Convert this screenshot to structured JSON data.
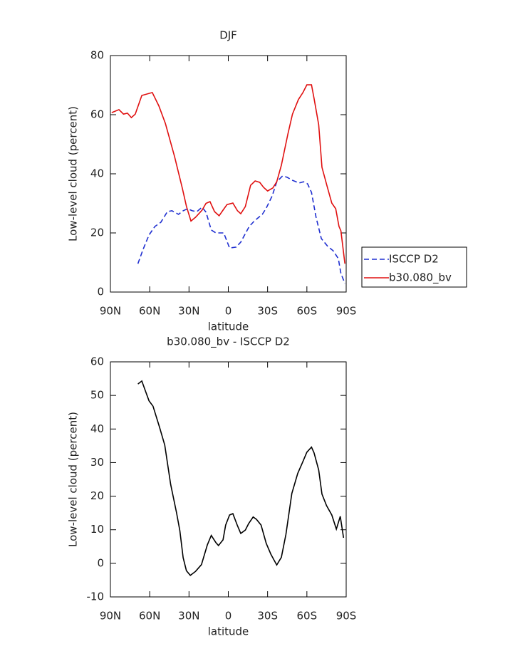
{
  "chart_data": [
    {
      "type": "line",
      "title": "DJF",
      "xlabel": "latitude",
      "ylabel": "Low-level cloud (percent)",
      "xlim": [
        90,
        -90
      ],
      "xticks": [
        {
          "value": 90,
          "label": "90N"
        },
        {
          "value": 60,
          "label": "60N"
        },
        {
          "value": 30,
          "label": "30N"
        },
        0,
        {
          "value": -30,
          "label": "30S"
        },
        {
          "value": -60,
          "label": "60S"
        },
        {
          "value": -90,
          "label": "90S"
        }
      ],
      "ylim": [
        0,
        80
      ],
      "yticks": [
        0,
        20,
        40,
        60,
        80
      ],
      "legend": "right",
      "series": [
        {
          "name": "ISCCP D2",
          "color": "#1f2fd0",
          "linestyle": "dashed",
          "x": [
            69,
            65,
            60.5,
            56,
            51.5,
            46.5,
            43,
            38,
            34.5,
            31,
            27.5,
            24,
            20,
            17,
            13,
            9.5,
            3.5,
            -1,
            -6,
            -9.5,
            -16,
            -20,
            -26,
            -29,
            -33.5,
            -37,
            -41.5,
            -45,
            -49,
            -54,
            -57.5,
            -60.5,
            -63.5,
            -67,
            -71,
            -76,
            -80,
            -84,
            -86,
            -89
          ],
          "values": [
            9.6,
            14.5,
            19.3,
            22.2,
            23.6,
            27.2,
            27.5,
            26.3,
            27.5,
            28.2,
            27.5,
            27.2,
            28.7,
            27,
            21,
            20,
            20,
            14.9,
            15.2,
            16.9,
            22.2,
            24.1,
            26.3,
            28.4,
            32.5,
            37.3,
            39.3,
            38.8,
            37.8,
            36.9,
            37.3,
            36.6,
            33.7,
            25.3,
            18.1,
            15.4,
            14,
            11.3,
            6.3,
            2.9
          ]
        },
        {
          "name": "b30.080_bv",
          "color": "#e01010",
          "linestyle": "solid",
          "x": [
            89,
            83.5,
            80,
            77,
            74,
            71,
            66,
            58,
            53,
            48,
            41,
            35,
            32,
            28.5,
            25,
            20,
            17,
            14,
            10.5,
            7,
            4,
            1,
            -3.5,
            -7,
            -9.5,
            -13,
            -17,
            -20.5,
            -24,
            -27,
            -30,
            -34,
            -37,
            -40.5,
            -45.5,
            -49,
            -53.5,
            -57,
            -60,
            -63.5,
            -65.5,
            -69,
            -71.5,
            -75.5,
            -79,
            -82,
            -84.5,
            -86,
            -89
          ],
          "values": [
            60.7,
            61.7,
            60.2,
            60.5,
            59,
            60.2,
            66.5,
            67.5,
            63,
            57,
            45.8,
            35,
            29,
            24,
            25.3,
            27.7,
            30,
            30.6,
            27.2,
            25.8,
            27.7,
            29.6,
            30.1,
            27.5,
            26.5,
            28.9,
            36.1,
            37.6,
            37.1,
            35.4,
            34.2,
            35.2,
            37.3,
            42.9,
            53.5,
            60.2,
            65.1,
            67.5,
            70.1,
            70.1,
            65.5,
            56.6,
            42.2,
            35.7,
            30.1,
            28.2,
            22.2,
            20.7,
            9.6
          ]
        }
      ]
    },
    {
      "type": "line",
      "title": "b30.080_bv - ISCCP D2",
      "xlabel": "latitude",
      "ylabel": "Low-level cloud (percent)",
      "xlim": [
        90,
        -90
      ],
      "xticks": [
        {
          "value": 90,
          "label": "90N"
        },
        {
          "value": 60,
          "label": "60N"
        },
        {
          "value": 30,
          "label": "30N"
        },
        0,
        {
          "value": -30,
          "label": "30S"
        },
        {
          "value": -60,
          "label": "60S"
        },
        {
          "value": -90,
          "label": "90S"
        }
      ],
      "ylim": [
        -10,
        60
      ],
      "yticks": [
        -10,
        0,
        10,
        20,
        30,
        40,
        50,
        60
      ],
      "series": [
        {
          "color": "#000000",
          "linestyle": "solid",
          "x": [
            69,
            66,
            63.5,
            60.5,
            57.5,
            52.5,
            48.5,
            44,
            39.5,
            37,
            34.5,
            32,
            29,
            25,
            20.5,
            16,
            13,
            9.5,
            7.5,
            4,
            2,
            -1,
            -3.5,
            -7,
            -9.5,
            -13,
            -15.5,
            -19,
            -21.5,
            -25,
            -29,
            -32.5,
            -37,
            -40.5,
            -44,
            -48.5,
            -53,
            -56.5,
            -60,
            -63.5,
            -65.5,
            -69,
            -71.5,
            -75,
            -79,
            -82.5,
            -85.5,
            -88
          ],
          "values": [
            53.4,
            54.3,
            51.6,
            48.4,
            46.8,
            40.5,
            35.2,
            23.5,
            15,
            9.7,
            1.7,
            -2.2,
            -3.6,
            -2.4,
            -0.4,
            5.5,
            8.3,
            6.2,
            5.3,
            7,
            11.4,
            14.4,
            14.8,
            11.2,
            8.9,
            9.9,
            11.8,
            13.8,
            13.1,
            11.4,
            5.9,
            2.7,
            -0.5,
            1.8,
            8.6,
            20.8,
            26.8,
            29.9,
            33.1,
            34.6,
            32.9,
            27.8,
            20.6,
            17.2,
            14.4,
            10.2,
            14,
            7.6
          ]
        }
      ]
    }
  ]
}
